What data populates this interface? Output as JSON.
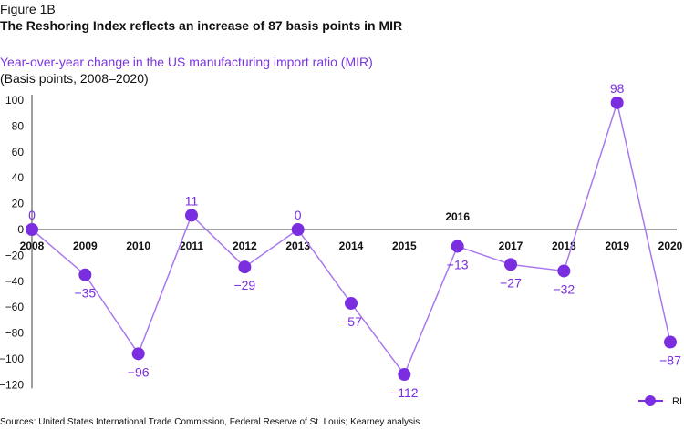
{
  "figure_label": "Figure 1B",
  "title": "The Reshoring Index reflects an increase of 87 basis points in MIR",
  "source": "Sources: United States International Trade Commission, Federal Reserve of St. Louis; Kearney analysis",
  "colors": {
    "series": "#7a2ee0",
    "line": "#a978ee",
    "axis": "#a0a0a0"
  },
  "chart_data": {
    "type": "line",
    "title": "Year-over-year change in the US manufacturing import ratio (MIR)",
    "subtitle": "(Basis points, 2008–2020)",
    "x": [
      "2008",
      "2009",
      "2010",
      "2011",
      "2012",
      "2013",
      "2014",
      "2015",
      "2016",
      "2017",
      "2018",
      "2019",
      "2020"
    ],
    "series": [
      {
        "name": "RI",
        "values": [
          0,
          -35,
          -96,
          11,
          -29,
          0,
          -57,
          -112,
          -13,
          -27,
          -32,
          98,
          -87
        ],
        "labels": [
          "0",
          "−35",
          "−96",
          "11",
          "−29",
          "0",
          "−57",
          "−112",
          "−13",
          "−27",
          "−32",
          "98",
          "−87"
        ]
      }
    ],
    "yticks": [
      100,
      80,
      60,
      40,
      20,
      0,
      -20,
      -40,
      -60,
      -80,
      -100,
      -120
    ],
    "ytick_labels": [
      "100",
      "80",
      "60",
      "40",
      "20",
      "0",
      "−20",
      "−40",
      "−60",
      "−80",
      "−100",
      "−120"
    ],
    "ylim": [
      -120,
      100
    ],
    "legend": "bottom-right",
    "grid": false
  }
}
